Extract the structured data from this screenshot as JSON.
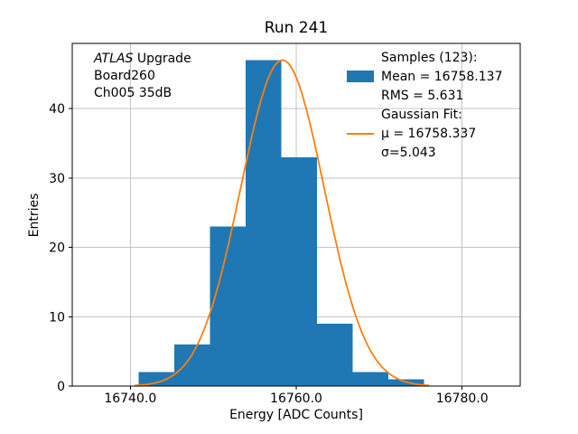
{
  "chart_data": {
    "type": "histogram",
    "title": "Run 241",
    "xlabel": "Energy [ADC Counts]",
    "ylabel": "Entries",
    "xlim": [
      16733,
      16787
    ],
    "ylim": [
      0,
      49.4
    ],
    "xticks": [
      16740,
      16760,
      16780
    ],
    "xtick_labels": [
      "16740.0",
      "16760.0",
      "16780.0"
    ],
    "yticks": [
      0,
      10,
      20,
      30,
      40
    ],
    "ytick_labels": [
      "0",
      "10",
      "20",
      "30",
      "40"
    ],
    "grid": true,
    "legend_position": "upper right",
    "bin_edges": [
      16741.0,
      16745.3,
      16749.6,
      16753.9,
      16758.2,
      16762.5,
      16766.8,
      16771.1,
      16775.4
    ],
    "counts": [
      2,
      6,
      23,
      47,
      33,
      9,
      2,
      1
    ],
    "total_entries": 123,
    "stats": {
      "mean": 16758.137,
      "rms": 5.631
    },
    "fit": {
      "type": "gaussian",
      "mu": 16758.337,
      "sigma": 5.043,
      "amplitude": 47.0,
      "x_range": [
        16740.5,
        16776.0
      ]
    },
    "colors": {
      "bar": "#1f77b4",
      "fit_line": "#ff7f0e",
      "grid": "#c4c4c4",
      "axis": "#000000"
    }
  },
  "annotations": {
    "line1_italic": "ATLAS",
    "line1_rest": " Upgrade",
    "line2": "Board260",
    "line3": "Ch005 35dB"
  },
  "legend": {
    "rows": [
      {
        "label": "Samples (123):",
        "handle": "none"
      },
      {
        "label": "Mean = 16758.137",
        "handle": "patch"
      },
      {
        "label": "RMS = 5.631",
        "handle": "none"
      },
      {
        "label": "Gaussian Fit:",
        "handle": "none"
      },
      {
        "label": "μ = 16758.337",
        "handle": "line"
      },
      {
        "label": "σ=5.043",
        "handle": "none"
      }
    ]
  }
}
